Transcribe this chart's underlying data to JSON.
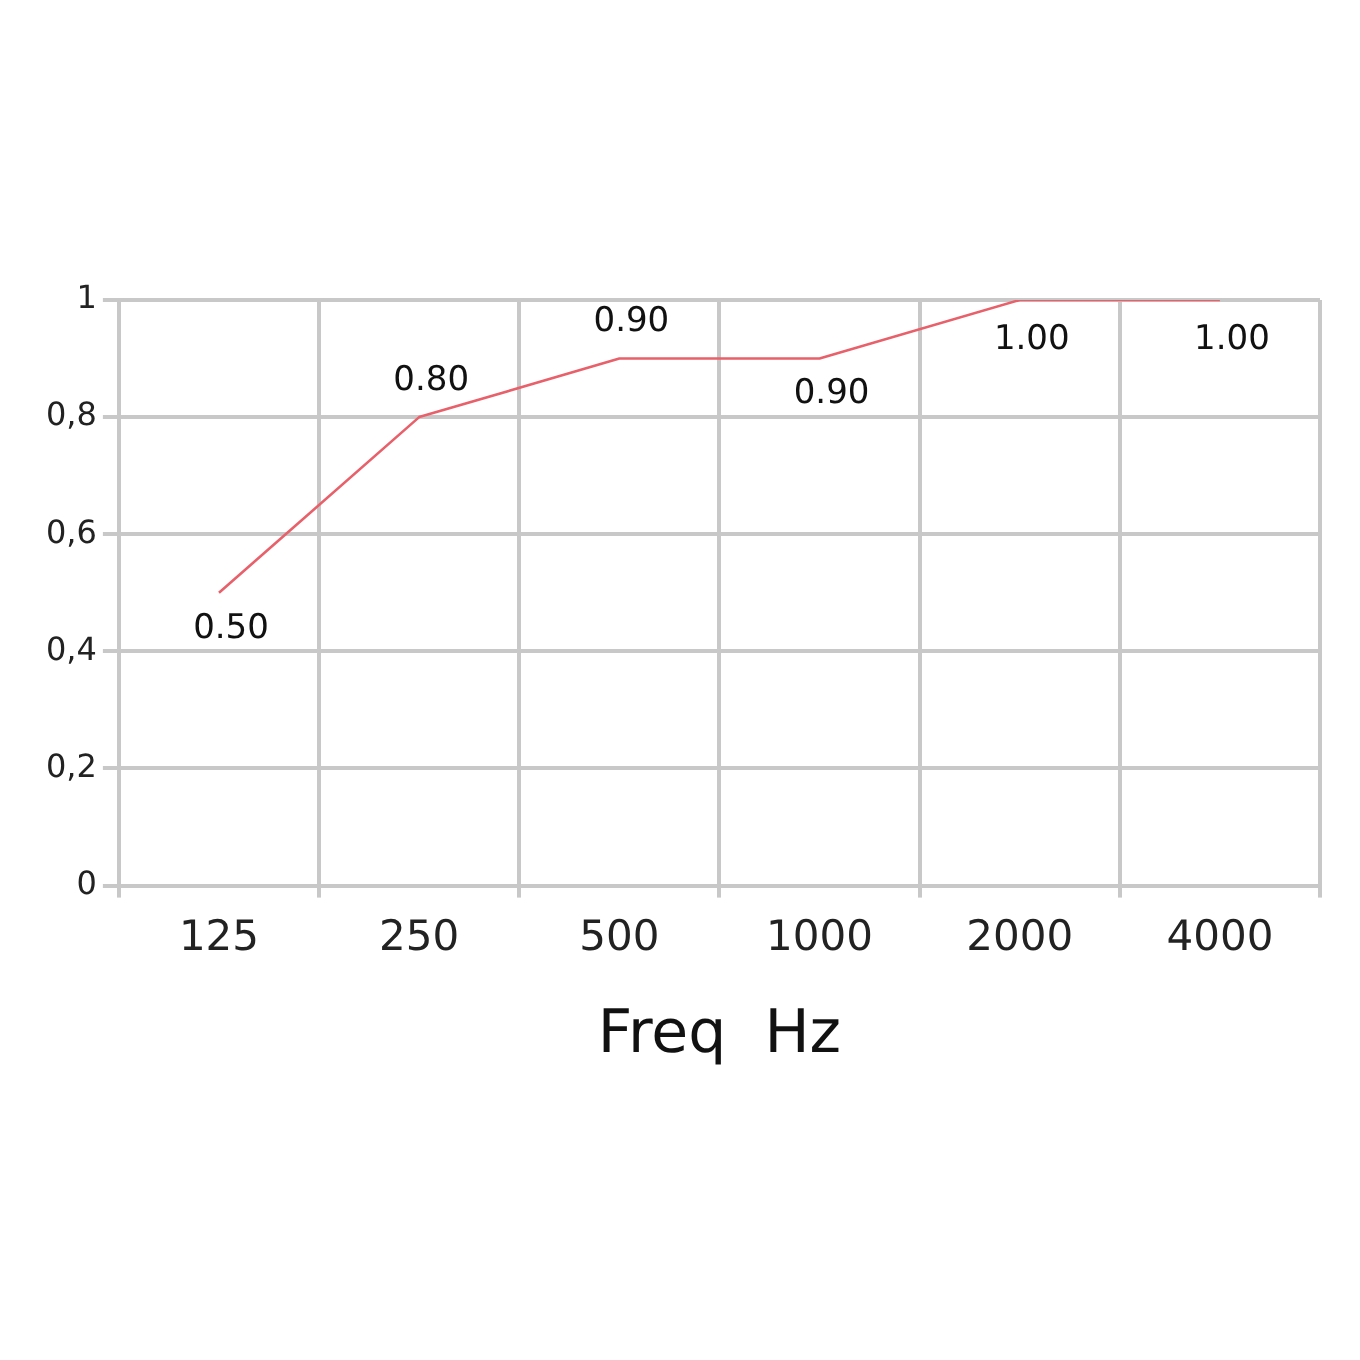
{
  "chart_data": {
    "type": "line",
    "xlabel": "Freq  Hz",
    "categories": [
      "125",
      "250",
      "500",
      "1000",
      "2000",
      "4000"
    ],
    "series": [
      {
        "color": "#e8606a",
        "values": [
          0.5,
          0.8,
          0.9,
          0.9,
          1.0,
          1.0
        ],
        "value_labels": [
          "0.50",
          "0.80",
          "0.90",
          "0.90",
          "1.00",
          "1.00"
        ]
      }
    ],
    "ylim": [
      0,
      1
    ],
    "yticks": [
      0,
      {
        "value": 0.2,
        "label": "0,2"
      },
      {
        "value": 0.4,
        "label": "0,4"
      },
      {
        "value": 0.6,
        "label": "0,6"
      },
      {
        "value": 0.8,
        "label": "0,8"
      },
      1
    ],
    "grid": true,
    "legend": false,
    "marker": "none",
    "line_style": "solid"
  }
}
